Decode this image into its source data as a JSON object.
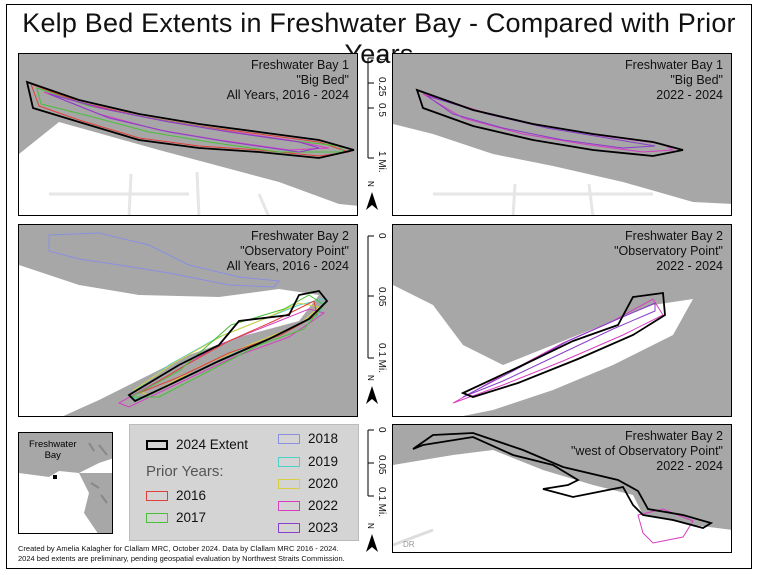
{
  "title": "Kelp Bed Extents in Freshwater Bay - Compared with Prior Years",
  "panels": [
    {
      "line1": "Freshwater Bay 1",
      "line2": "\"Big Bed\"",
      "line3": "All Years, 2016 - 2024"
    },
    {
      "line1": "Freshwater Bay 1",
      "line2": "\"Big Bed\"",
      "line3": "2022 - 2024"
    },
    {
      "line1": "Freshwater Bay 2",
      "line2": "\"Observatory Point\"",
      "line3": "All Years, 2016 - 2024"
    },
    {
      "line1": "Freshwater Bay 2",
      "line2": "\"Observatory Point\"",
      "line3": "2022 - 2024"
    },
    {
      "line1": "Freshwater Bay 2",
      "line2": "\"west of Observatory Point\"",
      "line3": "2022 - 2024"
    }
  ],
  "scales": [
    {
      "ticks": [
        "0",
        "0.25",
        "0.5",
        "1 Mi."
      ]
    },
    {
      "ticks": [
        "0",
        "0.05",
        "0.1 Mi."
      ]
    },
    {
      "ticks": [
        "0",
        "0.05",
        "0.1 Mi."
      ]
    }
  ],
  "north_label": "N",
  "road_label": "DR",
  "inset": {
    "label_line1": "Freshwater",
    "label_line2": "Bay"
  },
  "legend": {
    "current": "2024 Extent",
    "prior_heading": "Prior Years:",
    "years": [
      {
        "label": "2016",
        "color": "#e0403a"
      },
      {
        "label": "2017",
        "color": "#4bbf3a"
      },
      {
        "label": "2018",
        "color": "#8a8fe0"
      },
      {
        "label": "2019",
        "color": "#4fd0c8"
      },
      {
        "label": "2020",
        "color": "#d8d040"
      },
      {
        "label": "2022",
        "color": "#d63ec0"
      },
      {
        "label": "2023",
        "color": "#8a3fc8"
      }
    ]
  },
  "credit_line1": "Created by Amelia Kalagher for Clallam MRC, October 2024. Data by Clallam MRC 2016 - 2024.",
  "credit_line2": "2024 bed extents are preliminary, pending geospatial evaluation by Northwest Straits Commission.",
  "colors": {
    "water": "#a7a7a7",
    "land": "#ffffff",
    "extent_2024": "#000000"
  }
}
